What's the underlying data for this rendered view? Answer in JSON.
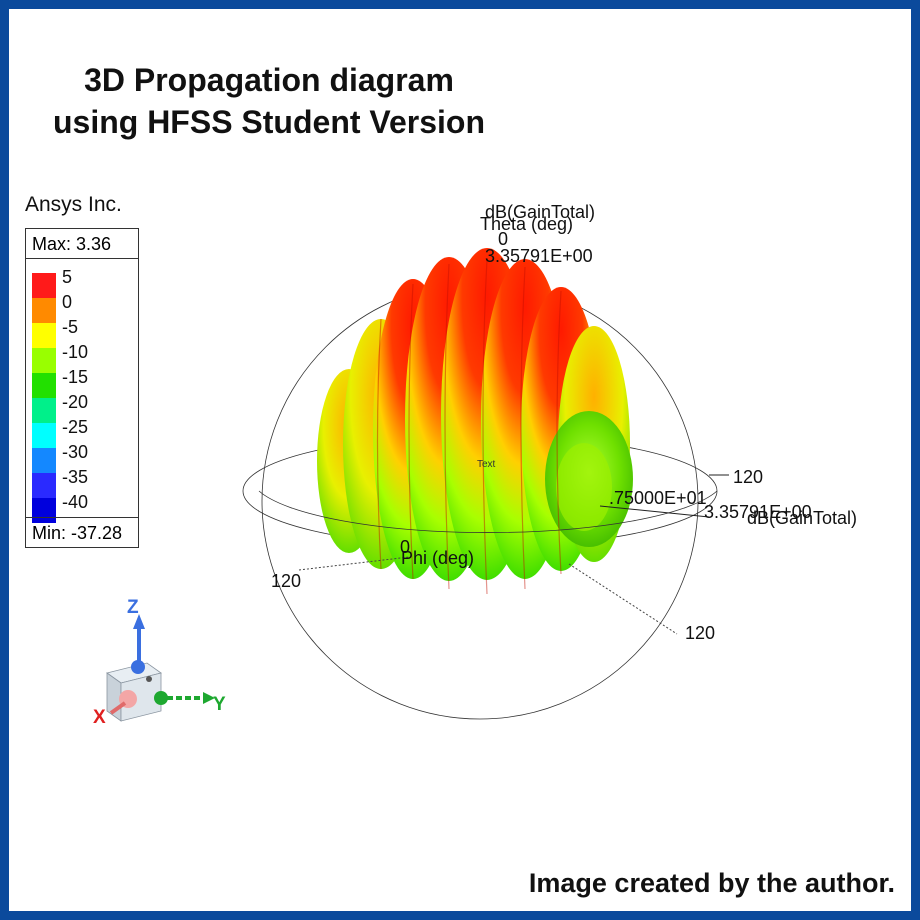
{
  "title_line1": "3D Propagation diagram",
  "title_line2": "using HFSS Student Version",
  "company": "Ansys Inc.",
  "legend": {
    "max_label": "Max: 3.36",
    "min_label": "Min: -37.28",
    "ticks": [
      {
        "label": "5",
        "color": "#ff1a1a"
      },
      {
        "label": "0",
        "color": "#ff8a00"
      },
      {
        "label": "-5",
        "color": "#ffff00"
      },
      {
        "label": "-10",
        "color": "#99ff00"
      },
      {
        "label": "-15",
        "color": "#22e000"
      },
      {
        "label": "-20",
        "color": "#00f08a"
      },
      {
        "label": "-25",
        "color": "#00ffff"
      },
      {
        "label": "-30",
        "color": "#1488ff"
      },
      {
        "label": "-35",
        "color": "#2a2aff"
      },
      {
        "label": "-40",
        "color": "#0000dd"
      }
    ]
  },
  "plot": {
    "quantity_top": "dB(GainTotal)",
    "theta_label": "Theta (deg)",
    "theta_zero": "0",
    "max_value_top": "3.35791E+00",
    "side_value_partial": ".75000E+01",
    "max_value_side": "3.35791E+00",
    "quantity_side": "dB(GainTotal)",
    "phi_zero": "0",
    "phi_label": "Phi (deg)",
    "center_text": "Text",
    "tick_right": "120",
    "tick_left": "120",
    "tick_bottom": "120"
  },
  "axes": {
    "x": "X",
    "y": "Y",
    "z": "Z"
  },
  "credit": "Image created by the author."
}
